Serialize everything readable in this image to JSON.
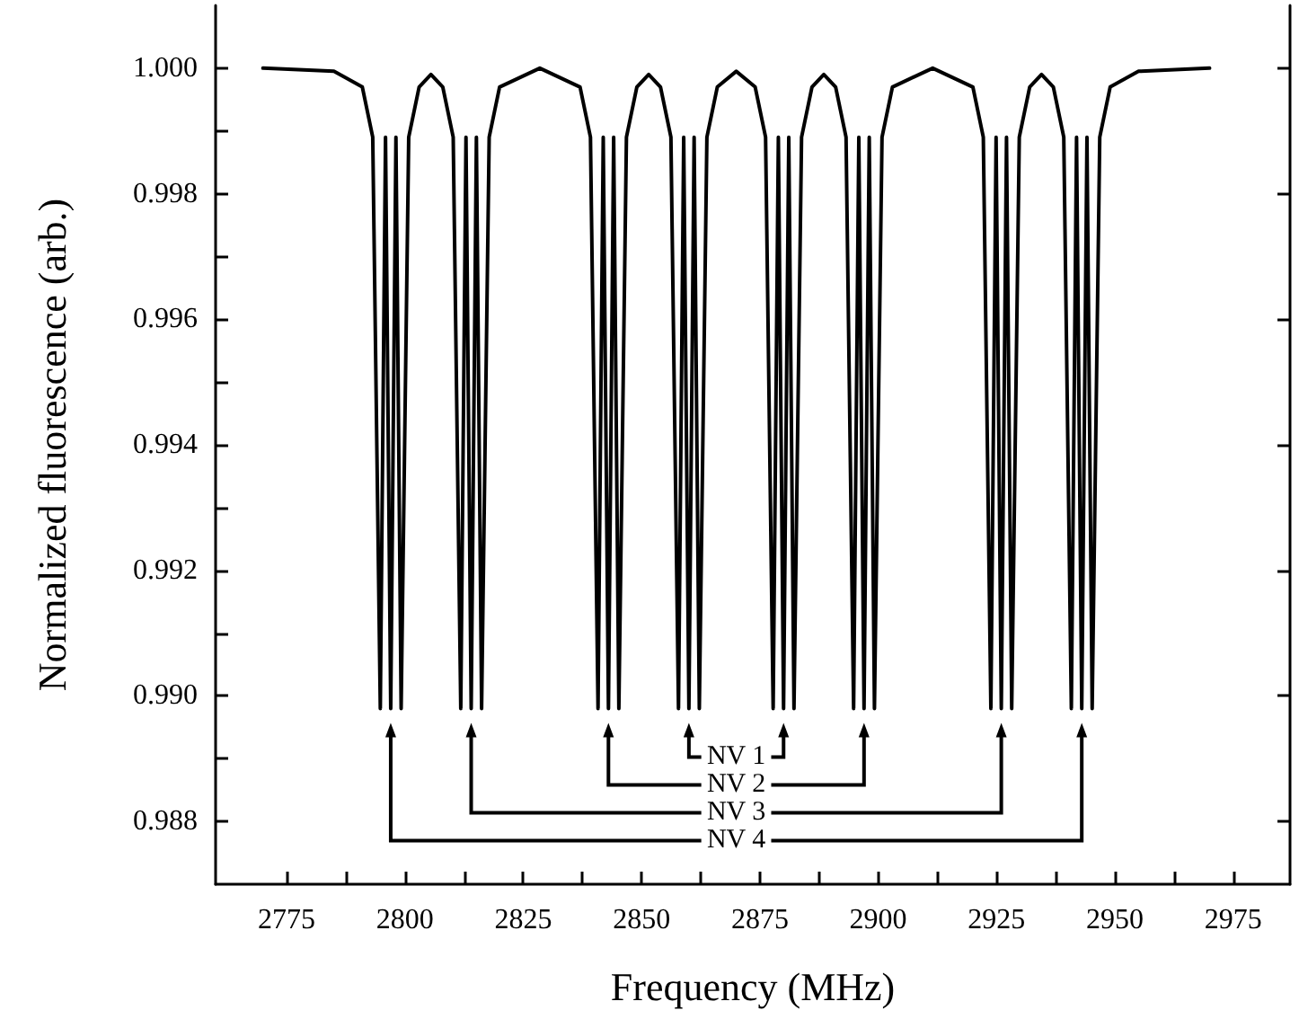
{
  "chart_data": {
    "type": "line",
    "xlabel": "Frequency (MHz)",
    "ylabel": "Normalized fluorescence (arb.)",
    "x": [
      2770,
      2785,
      2791,
      2793.2,
      2794.8,
      2795.9,
      2797,
      2798.1,
      2799.2,
      2800.8,
      2803,
      2805.5,
      2808,
      2810.2,
      2811.8,
      2812.9,
      2814,
      2815.1,
      2816.2,
      2817.8,
      2820,
      2828.5,
      2837,
      2839.2,
      2840.8,
      2841.9,
      2843,
      2844.1,
      2845.2,
      2846.8,
      2849,
      2851.5,
      2854,
      2856.2,
      2857.8,
      2858.9,
      2860,
      2861.1,
      2862.2,
      2863.8,
      2866,
      2870,
      2874,
      2876.2,
      2877.8,
      2878.9,
      2880,
      2881.1,
      2882.2,
      2883.8,
      2886,
      2888.5,
      2891,
      2893.2,
      2894.8,
      2895.9,
      2897,
      2898.1,
      2899.2,
      2900.8,
      2903,
      2911.5,
      2920,
      2922.2,
      2923.8,
      2924.9,
      2926,
      2927.1,
      2928.2,
      2929.8,
      2932,
      2934.5,
      2937,
      2939.2,
      2940.8,
      2941.9,
      2943,
      2944.1,
      2945.2,
      2946.8,
      2949,
      2955,
      2970
    ],
    "series": [
      {
        "color": "#000000",
        "values": [
          1.0,
          0.99995,
          0.9997,
          0.9989,
          0.9898,
          0.9989,
          0.9898,
          0.9989,
          0.9898,
          0.9989,
          0.9997,
          0.9999,
          0.9997,
          0.9989,
          0.9898,
          0.9989,
          0.9898,
          0.9989,
          0.9898,
          0.9989,
          0.9997,
          1.0,
          0.9997,
          0.9989,
          0.9898,
          0.9989,
          0.9898,
          0.9989,
          0.9898,
          0.9989,
          0.9997,
          0.9999,
          0.9997,
          0.9989,
          0.9898,
          0.9989,
          0.9898,
          0.9989,
          0.9898,
          0.9989,
          0.9997,
          0.99995,
          0.9997,
          0.9989,
          0.9898,
          0.9989,
          0.9898,
          0.9989,
          0.9898,
          0.9989,
          0.9997,
          0.9999,
          0.9997,
          0.9989,
          0.9898,
          0.9989,
          0.9898,
          0.9989,
          0.9898,
          0.9989,
          0.9997,
          1.0,
          0.9997,
          0.9989,
          0.9898,
          0.9989,
          0.9898,
          0.9989,
          0.9898,
          0.9989,
          0.9997,
          0.9999,
          0.9997,
          0.9989,
          0.9898,
          0.9989,
          0.9898,
          0.9989,
          0.9898,
          0.9989,
          0.9997,
          0.99995,
          1.0
        ]
      }
    ],
    "xlim": [
      2760,
      2987
    ],
    "ylim": [
      0.987,
      1.001
    ],
    "xticks": [
      2775,
      {
        "value": 2787.5,
        "label": null
      },
      2800,
      {
        "value": 2812.5,
        "label": null
      },
      2825,
      {
        "value": 2837.5,
        "label": null
      },
      2850,
      {
        "value": 2862.5,
        "label": null
      },
      2875,
      {
        "value": 2887.5,
        "label": null
      },
      2900,
      {
        "value": 2912.5,
        "label": null
      },
      2925,
      {
        "value": 2937.5,
        "label": null
      },
      2950,
      {
        "value": 2962.5,
        "label": null
      },
      2975
    ],
    "yticks": [
      {
        "value": 0.988,
        "label": "0.988"
      },
      {
        "value": 0.989,
        "label": null
      },
      {
        "value": 0.99,
        "label": "0.990"
      },
      {
        "value": 0.991,
        "label": null
      },
      {
        "value": 0.992,
        "label": "0.992"
      },
      {
        "value": 0.993,
        "label": null
      },
      {
        "value": 0.994,
        "label": "0.994"
      },
      {
        "value": 0.995,
        "label": null
      },
      {
        "value": 0.996,
        "label": "0.996"
      },
      {
        "value": 0.997,
        "label": null
      },
      {
        "value": 0.998,
        "label": "0.998"
      },
      {
        "value": 0.999,
        "label": null
      },
      {
        "value": 1.0,
        "label": "1.000"
      }
    ],
    "annotations": [
      "NV 1",
      "NV 2",
      "NV 3",
      "NV 4"
    ],
    "grid": false,
    "marker": "none",
    "line_style": "solid"
  }
}
